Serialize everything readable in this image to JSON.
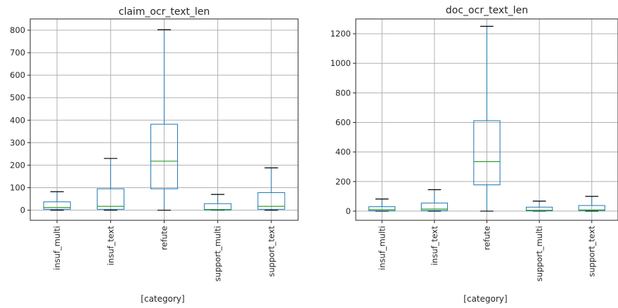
{
  "chart_data": [
    {
      "type": "box",
      "title": "claim_ocr_text_len",
      "xlabel": "[category]",
      "ylabel": "",
      "ylim": [
        -45,
        850
      ],
      "yticks": [
        0,
        100,
        200,
        300,
        400,
        500,
        600,
        700,
        800
      ],
      "grid": true,
      "categories": [
        "insuf_multi",
        "insuf_text",
        "refute",
        "support_multi",
        "support_text"
      ],
      "boxes": [
        {
          "min": 0,
          "q1": 4,
          "median": 12,
          "q3": 37,
          "max": 82
        },
        {
          "min": 0,
          "q1": 4,
          "median": 17,
          "q3": 95,
          "max": 230
        },
        {
          "min": 0,
          "q1": 95,
          "median": 218,
          "q3": 382,
          "max": 802
        },
        {
          "min": 0,
          "q1": 1,
          "median": 3,
          "q3": 29,
          "max": 70
        },
        {
          "min": 0,
          "q1": 4,
          "median": 17,
          "q3": 78,
          "max": 188
        }
      ]
    },
    {
      "type": "box",
      "title": "doc_ocr_text_len",
      "xlabel": "[category]",
      "ylabel": "",
      "ylim": [
        -62,
        1300
      ],
      "yticks": [
        0,
        200,
        400,
        600,
        800,
        1000,
        1200
      ],
      "grid": true,
      "categories": [
        "insuf_multi",
        "insuf_text",
        "refute",
        "support_multi",
        "support_text"
      ],
      "boxes": [
        {
          "min": 0,
          "q1": 3,
          "median": 10,
          "q3": 30,
          "max": 82
        },
        {
          "min": 0,
          "q1": 4,
          "median": 14,
          "q3": 55,
          "max": 145
        },
        {
          "min": 0,
          "q1": 178,
          "median": 335,
          "q3": 612,
          "max": 1250
        },
        {
          "min": 0,
          "q1": 2,
          "median": 6,
          "q3": 27,
          "max": 68
        },
        {
          "min": 0,
          "q1": 4,
          "median": 8,
          "q3": 38,
          "max": 100
        }
      ]
    }
  ]
}
